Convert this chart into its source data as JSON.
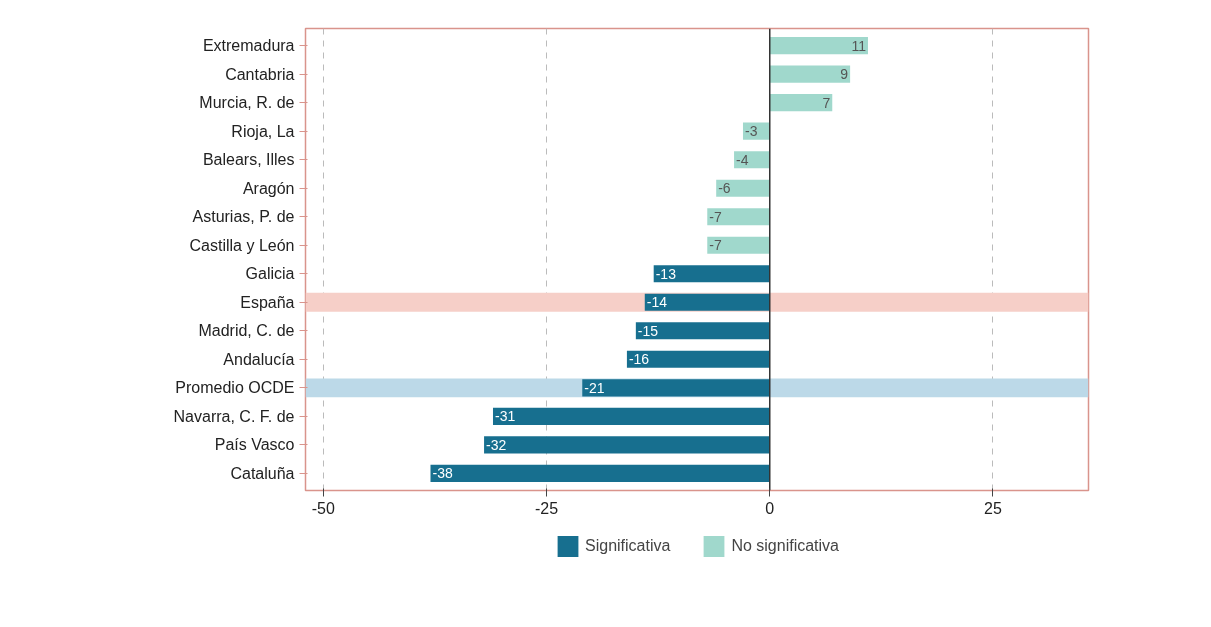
{
  "chart_data": {
    "type": "bar",
    "orientation": "horizontal",
    "categories": [
      "Extremadura",
      "Cantabria",
      "Murcia, R. de",
      "Rioja, La",
      "Balears, Illes",
      "Aragón",
      "Asturias, P. de",
      "Castilla y León",
      "Galicia",
      "España",
      "Madrid, C. de",
      "Andalucía",
      "Promedio OCDE",
      "Navarra, C. F. de",
      "País Vasco",
      "Cataluña"
    ],
    "series": [
      {
        "name": "Significativa",
        "color": "#176f8f",
        "values": [
          null,
          null,
          null,
          null,
          null,
          null,
          null,
          null,
          -13,
          -14,
          -15,
          -16,
          -21,
          -31,
          -32,
          -38
        ]
      },
      {
        "name": "No significativa",
        "color": "#a0d8cc",
        "values": [
          11,
          9,
          7,
          -3,
          -4,
          -6,
          -7,
          -7,
          null,
          null,
          null,
          null,
          null,
          null,
          null,
          null
        ]
      }
    ],
    "xlim": [
      -52,
      35.7
    ],
    "xticks": [
      -50,
      -25,
      0,
      25
    ],
    "bands": [
      {
        "axis": "y",
        "from": "España",
        "to": "España",
        "color": "#f6cfc8"
      },
      {
        "axis": "y",
        "from": "Promedio OCDE",
        "to": "Promedio OCDE",
        "color": "#bcd9e8"
      }
    ],
    "data_labels": true,
    "grid": "x",
    "legend": "bottom"
  }
}
